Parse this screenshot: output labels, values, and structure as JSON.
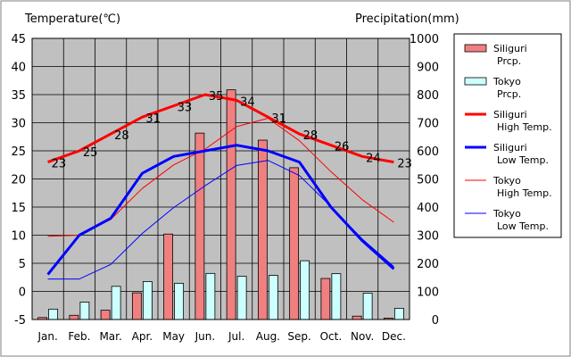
{
  "chart_data": {
    "type": "bar",
    "categories": [
      "Jan.",
      "Feb.",
      "Mar.",
      "Apr.",
      "May",
      "Jun.",
      "Jul.",
      "Aug.",
      "Sep.",
      "Oct.",
      "Nov.",
      "Dec."
    ],
    "left_axis_title": "Temperature(℃)",
    "right_axis_title": "Precipitation(mm)",
    "left_ylim": [
      -5,
      45
    ],
    "left_ticks": [
      "45",
      "40",
      "35",
      "30",
      "25",
      "20",
      "15",
      "10",
      "5",
      "0",
      "-5"
    ],
    "right_ylim": [
      0,
      1000
    ],
    "right_ticks": [
      "1000",
      "900",
      "800",
      "700",
      "600",
      "500",
      "400",
      "300",
      "200",
      "100",
      "0"
    ],
    "grid": true,
    "legend_position": "right",
    "series": [
      {
        "name": "Siliguri Prcp.",
        "kind": "bar",
        "axis": "right",
        "color": "#f08080",
        "values": [
          7,
          15,
          33,
          95,
          304,
          663,
          817,
          638,
          540,
          146,
          12,
          5
        ]
      },
      {
        "name": "Tokyo Prcp.",
        "kind": "bar",
        "axis": "right",
        "color": "#ccffff",
        "values": [
          37,
          62,
          118,
          135,
          129,
          164,
          154,
          157,
          209,
          163,
          94,
          40
        ]
      },
      {
        "name": "Siliguri High Temp.",
        "kind": "line",
        "axis": "left",
        "color": "#ff0000",
        "width": 3,
        "values": [
          23,
          25,
          28,
          31,
          33,
          35,
          34,
          31,
          28,
          26,
          24,
          23
        ]
      },
      {
        "name": "Siliguri Low Temp.",
        "kind": "line",
        "axis": "left",
        "color": "#0000ff",
        "width": 3,
        "values": [
          3,
          10,
          13,
          21,
          24,
          25,
          26,
          25,
          23,
          15,
          9,
          4
        ]
      },
      {
        "name": "Tokyo High Temp.",
        "kind": "line",
        "axis": "left",
        "color": "#ff0000",
        "width": 1,
        "values": [
          9.8,
          10,
          12.8,
          18.3,
          22.5,
          25.3,
          29.3,
          30.8,
          26.8,
          21.3,
          16.3,
          12.3
        ]
      },
      {
        "name": "Tokyo Low Temp.",
        "kind": "line",
        "axis": "left",
        "color": "#0000ff",
        "width": 1,
        "values": [
          2.2,
          2.2,
          4.8,
          10.3,
          14.9,
          18.8,
          22.4,
          23.3,
          20.6,
          15.1,
          9.3,
          4.4
        ]
      }
    ],
    "data_labels": {
      "series": "Siliguri High Temp.",
      "values": [
        "23",
        "25",
        "28",
        "31",
        "33",
        "35",
        "34",
        "31",
        "28",
        "26",
        "24",
        "23"
      ]
    },
    "legend": [
      {
        "line1": "Siliguri",
        "line2": "Prcp.",
        "swatch": "bar",
        "color": "#f08080"
      },
      {
        "line1": "Tokyo",
        "line2": "Prcp.",
        "swatch": "bar",
        "color": "#ccffff"
      },
      {
        "line1": "Siliguri",
        "line2": "High Temp.",
        "swatch": "line",
        "color": "#ff0000",
        "width": 3
      },
      {
        "line1": "Siliguri",
        "line2": "Low Temp.",
        "swatch": "line",
        "color": "#0000ff",
        "width": 3
      },
      {
        "line1": "Tokyo",
        "line2": "High Temp.",
        "swatch": "line",
        "color": "#ff0000",
        "width": 1
      },
      {
        "line1": "Tokyo",
        "line2": "Low Temp.",
        "swatch": "line",
        "color": "#0000ff",
        "width": 1
      }
    ],
    "plot_background": "#c0c0c0"
  }
}
